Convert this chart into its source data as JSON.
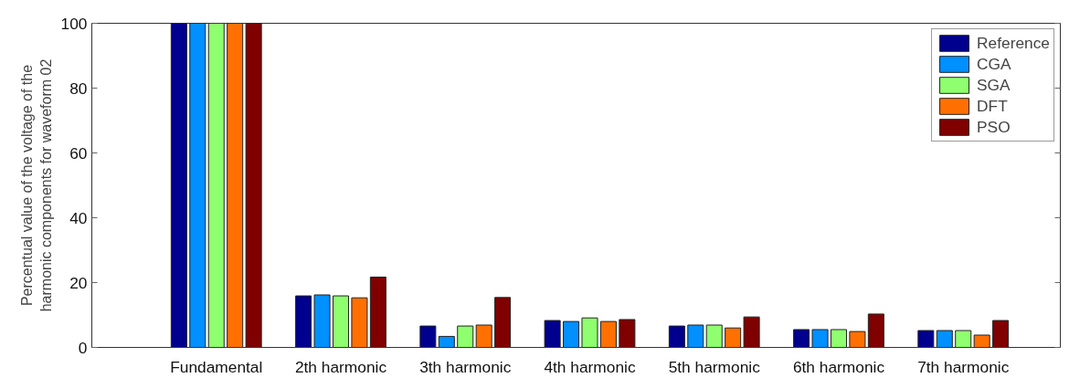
{
  "chart_data": {
    "type": "bar",
    "ylabel": "Percentual value of the voltage of the harmonic components for waveform 02",
    "categories": [
      "Fundamental",
      "2th harmonic",
      "3th harmonic",
      "4th harmonic",
      "5th harmonic",
      "6th harmonic",
      "7th harmonic"
    ],
    "series": [
      {
        "name": "Reference",
        "color": "#00008f",
        "values": [
          100,
          15.9,
          6.6,
          8.3,
          6.6,
          5.5,
          5.2
        ]
      },
      {
        "name": "CGA",
        "color": "#0090ff",
        "values": [
          100,
          16.2,
          3.4,
          8.0,
          6.9,
          5.5,
          5.2
        ]
      },
      {
        "name": "SGA",
        "color": "#8fff6f",
        "values": [
          100,
          15.9,
          6.6,
          9.1,
          6.9,
          5.5,
          5.2
        ]
      },
      {
        "name": "DFT",
        "color": "#ff7000",
        "values": [
          100,
          15.3,
          6.9,
          8.0,
          6.0,
          4.9,
          3.8
        ]
      },
      {
        "name": "PSO",
        "color": "#800000",
        "values": [
          100,
          21.7,
          15.4,
          8.6,
          9.4,
          10.3,
          8.3
        ]
      }
    ],
    "ylim": [
      0,
      100
    ],
    "yticks": [
      0,
      20,
      40,
      60,
      80,
      100
    ],
    "grid": false,
    "legend": "top right"
  }
}
